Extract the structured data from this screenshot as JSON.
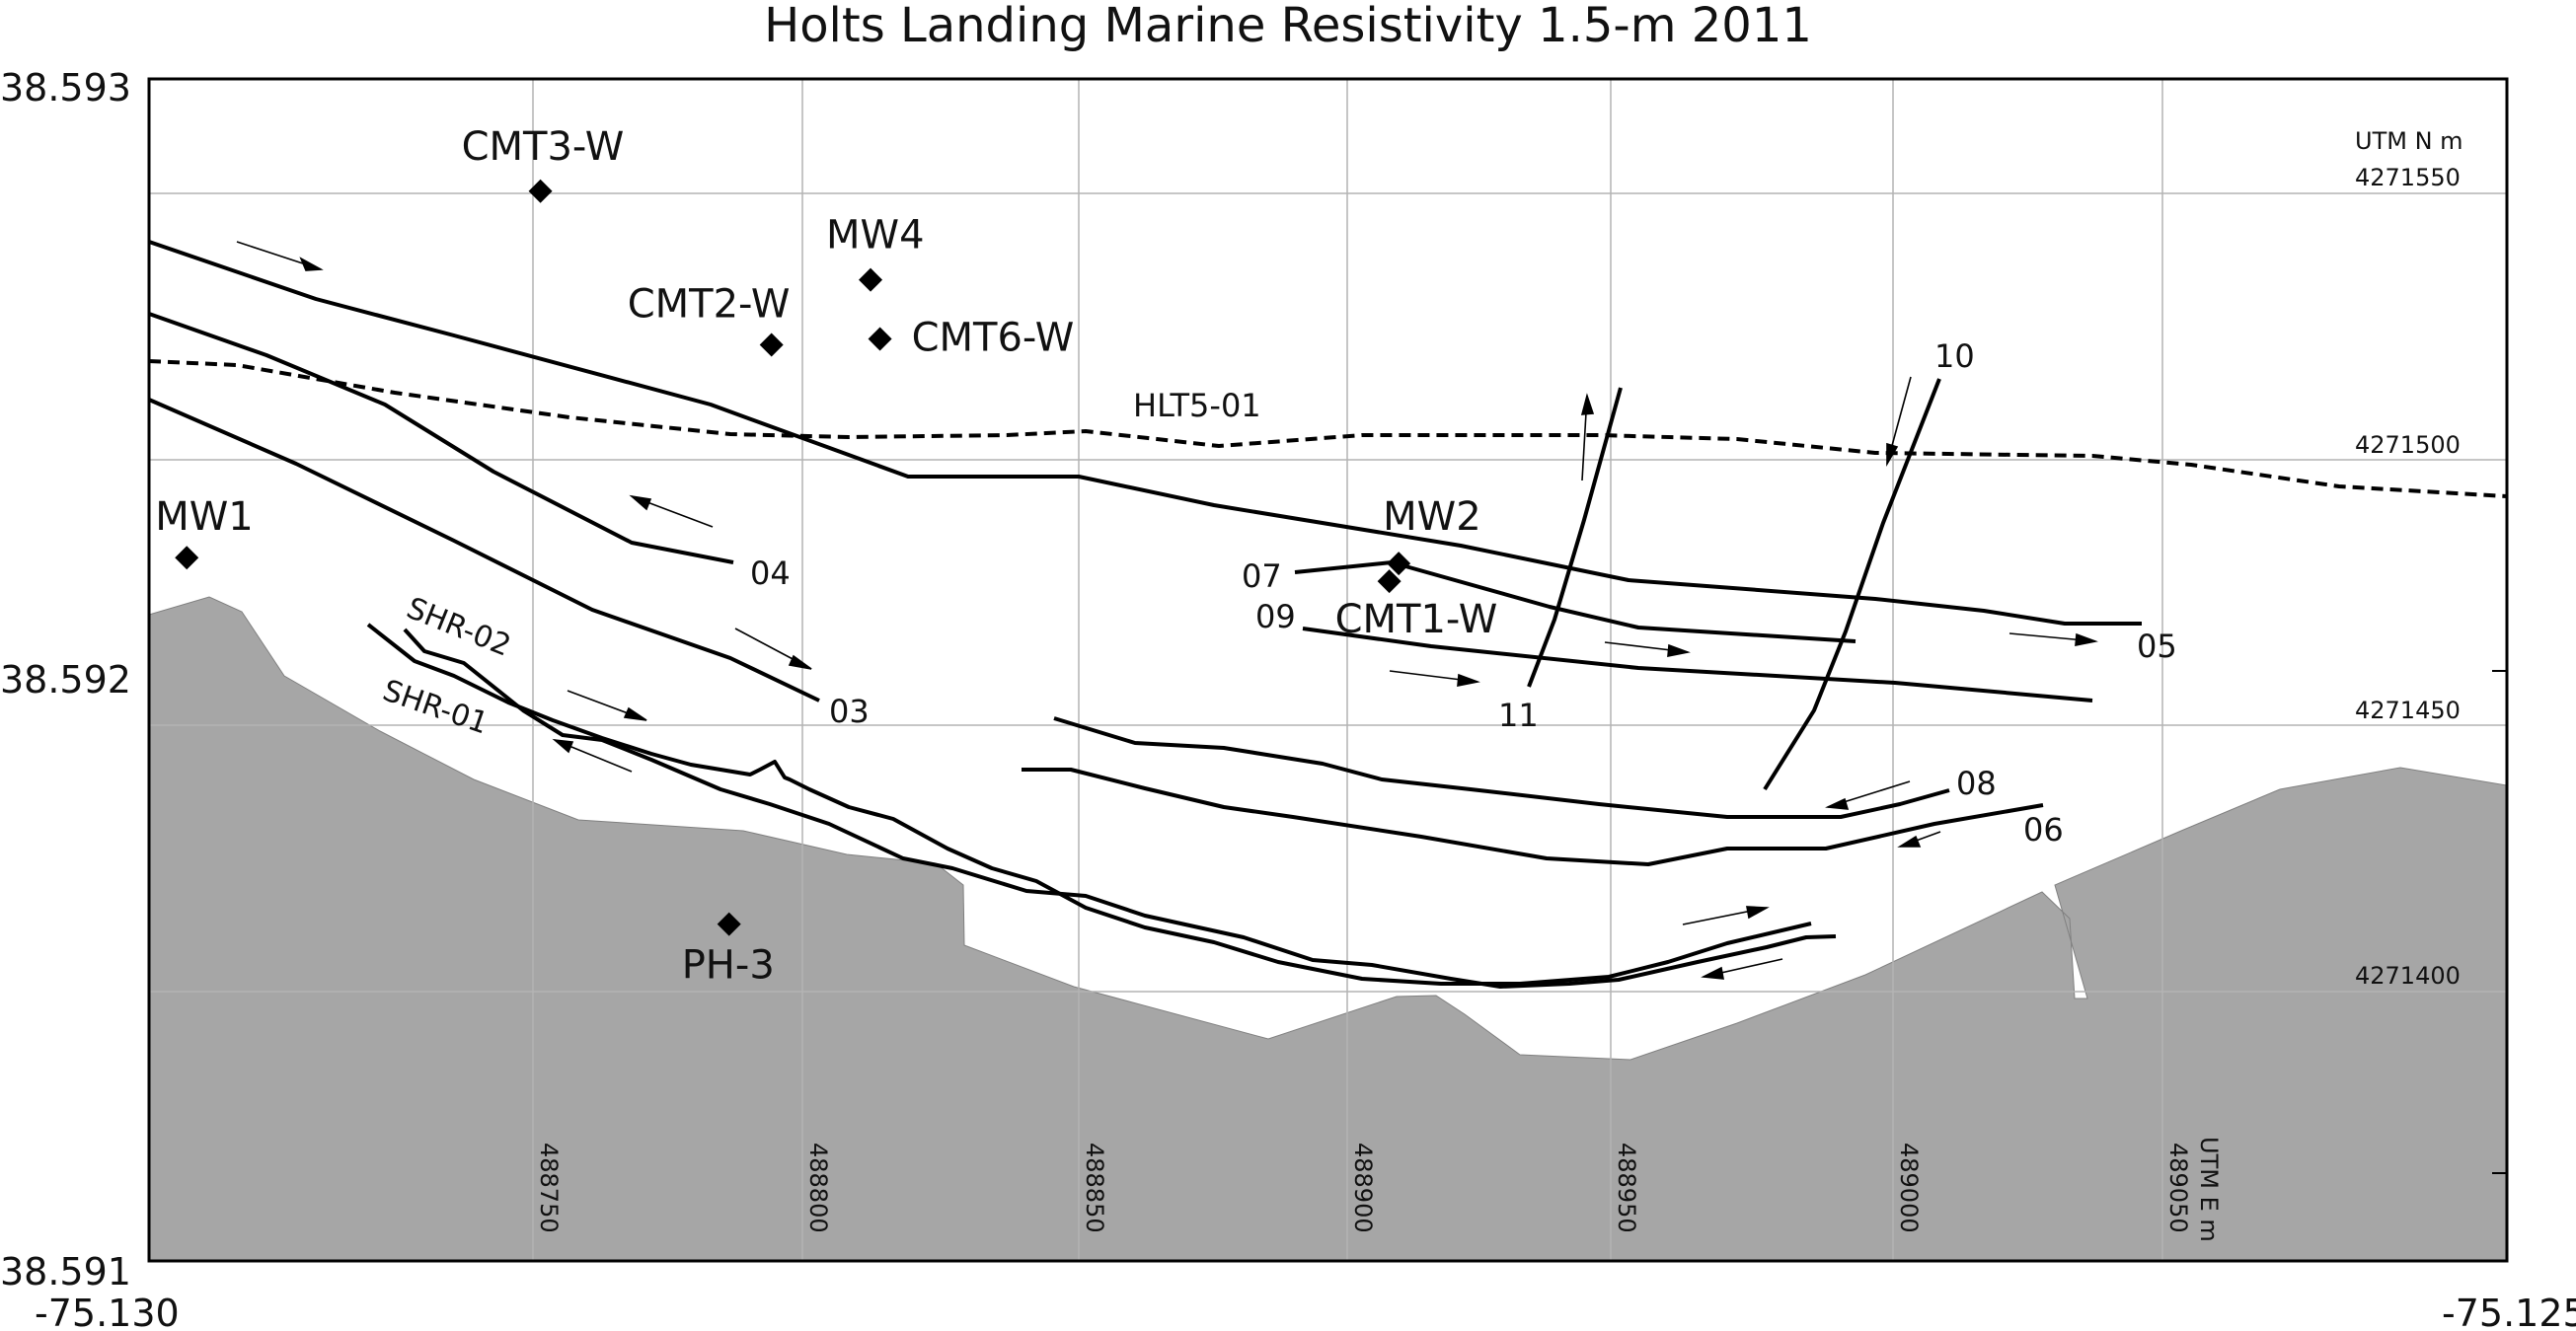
{
  "title": "Holts Landing Marine Resistivity  1.5-m  2011",
  "axes": {
    "lat_top": "38.593",
    "lat_mid": "38.592",
    "lat_bottom": "38.591",
    "lon_left": "-75.130",
    "lon_right": "-75.125"
  },
  "utm_n_label": "UTM N m",
  "utm_n_ticks": [
    "4271550",
    "4271500",
    "4271450",
    "4271400"
  ],
  "utm_e_label": "UTM E m",
  "utm_e_ticks": [
    "488750",
    "488800",
    "488850",
    "488900",
    "488950",
    "489000",
    "489050"
  ],
  "colors": {
    "land": "#a6a6a6",
    "grid": "#b4b4b4",
    "lines": "#000000"
  },
  "wells": [
    {
      "label": "CMT3-W",
      "x": -75.12917,
      "y": 38.59281
    },
    {
      "label": "CMT2-W",
      "x": -75.12868,
      "y": 38.59255
    },
    {
      "label": "MW4",
      "x": -75.12847,
      "y": 38.59266
    },
    {
      "label": "CMT6-W",
      "x": -75.12845,
      "y": 38.59256
    },
    {
      "label": "MW1",
      "x": -75.12992,
      "y": 38.59219
    },
    {
      "label": "MW2",
      "x": -75.12735,
      "y": 38.59218
    },
    {
      "label": "CMT1-W",
      "x": -75.12737,
      "y": 38.59215
    },
    {
      "label": "PH-3",
      "x": -75.12877,
      "y": 38.59157
    }
  ],
  "survey_lines": [
    {
      "label": "HLT5-01",
      "dashed": true
    },
    {
      "label": "03"
    },
    {
      "label": "04"
    },
    {
      "label": "05"
    },
    {
      "label": "06"
    },
    {
      "label": "07"
    },
    {
      "label": "08"
    },
    {
      "label": "09"
    },
    {
      "label": "10"
    },
    {
      "label": "11"
    },
    {
      "label": "SHR-01"
    },
    {
      "label": "SHR-02"
    }
  ]
}
